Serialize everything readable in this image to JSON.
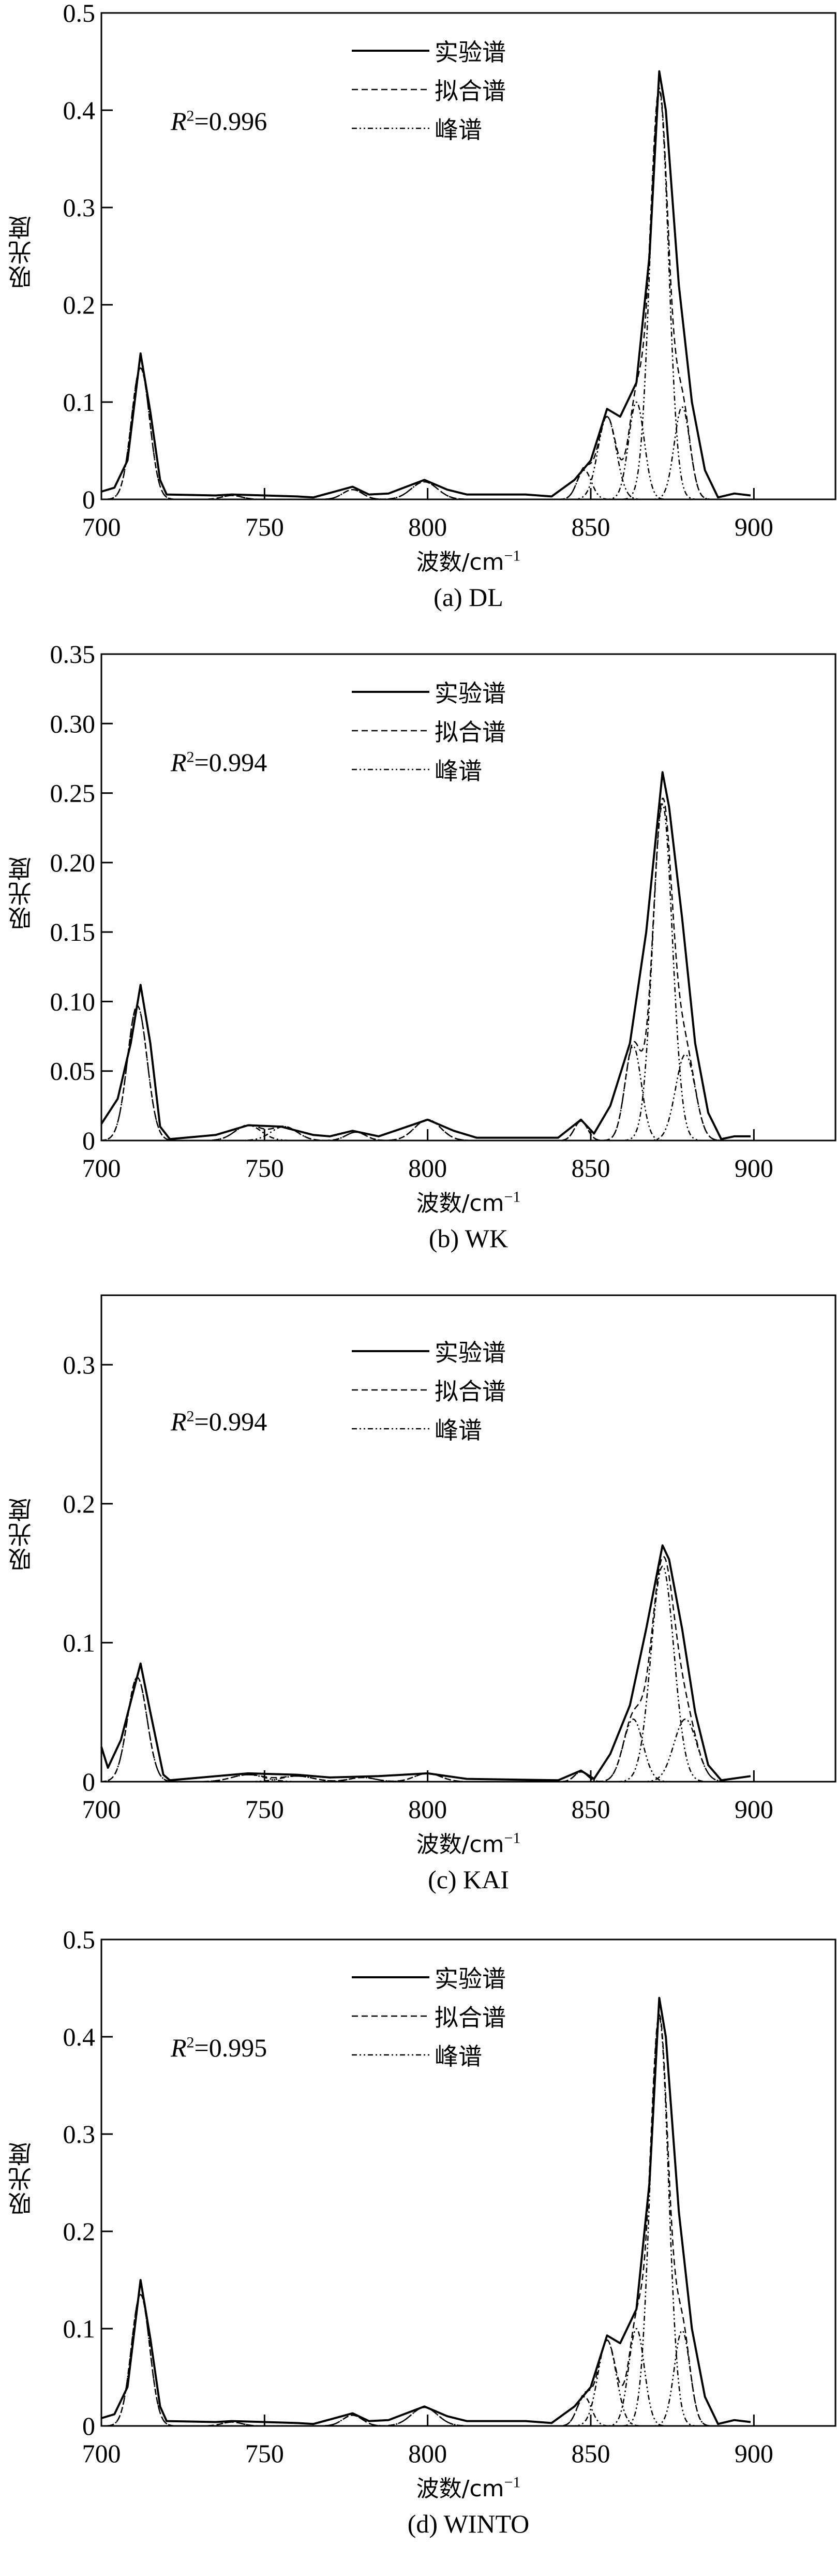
{
  "legend": {
    "experimental": "实验谱",
    "fitted": "拟合谱",
    "peaks": "峰谱"
  },
  "chart_data": [
    {
      "type": "line",
      "caption": "(a) DL",
      "r2_label": "R",
      "r2_sup": "2",
      "r2_value": "=0.996",
      "xlabel": "波数/cm",
      "xlabel_sup": "−1",
      "ylabel": "吸光度",
      "xlim": [
        700,
        925
      ],
      "ylim": [
        0,
        0.5
      ],
      "xticks": [
        700,
        750,
        800,
        850,
        900
      ],
      "yticks": [
        0,
        0.1,
        0.2,
        0.3,
        0.4,
        0.5
      ],
      "ytick_labels": [
        "0",
        "0.1",
        "0.2",
        "0.3",
        "0.4",
        "0.5"
      ],
      "experimental": [
        [
          700,
          0.008
        ],
        [
          704,
          0.012
        ],
        [
          708,
          0.04
        ],
        [
          712,
          0.15
        ],
        [
          715,
          0.09
        ],
        [
          718,
          0.02
        ],
        [
          720,
          0.005
        ],
        [
          735,
          0.004
        ],
        [
          740,
          0.005
        ],
        [
          760,
          0.003
        ],
        [
          765,
          0.002
        ],
        [
          777,
          0.013
        ],
        [
          782,
          0.005
        ],
        [
          788,
          0.006
        ],
        [
          799,
          0.02
        ],
        [
          806,
          0.01
        ],
        [
          812,
          0.005
        ],
        [
          830,
          0.005
        ],
        [
          838,
          0.003
        ],
        [
          845,
          0.02
        ],
        [
          850,
          0.04
        ],
        [
          855,
          0.093
        ],
        [
          859,
          0.085
        ],
        [
          864,
          0.12
        ],
        [
          868,
          0.25
        ],
        [
          871,
          0.44
        ],
        [
          873,
          0.4
        ],
        [
          877,
          0.22
        ],
        [
          881,
          0.1
        ],
        [
          885,
          0.03
        ],
        [
          889,
          0.002
        ],
        [
          894,
          0.006
        ],
        [
          899,
          0.004
        ]
      ],
      "peaks": [
        {
          "center": 712,
          "height": 0.135,
          "sigma": 2.8
        },
        {
          "center": 740,
          "height": 0.004,
          "sigma": 3
        },
        {
          "center": 777,
          "height": 0.01,
          "sigma": 3
        },
        {
          "center": 799,
          "height": 0.018,
          "sigma": 4
        },
        {
          "center": 848,
          "height": 0.03,
          "sigma": 2.2
        },
        {
          "center": 855,
          "height": 0.085,
          "sigma": 2.8
        },
        {
          "center": 864,
          "height": 0.1,
          "sigma": 2.4
        },
        {
          "center": 871,
          "height": 0.42,
          "sigma": 2.8
        },
        {
          "center": 878,
          "height": 0.095,
          "sigma": 2.4
        }
      ]
    },
    {
      "type": "line",
      "caption": "(b) WK",
      "r2_label": "R",
      "r2_sup": "2",
      "r2_value": "=0.994",
      "xlabel": "波数/cm",
      "xlabel_sup": "−1",
      "ylabel": "吸光度",
      "xlim": [
        700,
        925
      ],
      "ylim": [
        0,
        0.35
      ],
      "xticks": [
        700,
        750,
        800,
        850,
        900
      ],
      "yticks": [
        0,
        0.05,
        0.1,
        0.15,
        0.2,
        0.25,
        0.3,
        0.35
      ],
      "ytick_labels": [
        "0",
        "0.05",
        "0.10",
        "0.15",
        "0.20",
        "0.25",
        "0.30",
        "0.35"
      ],
      "experimental": [
        [
          700,
          0.012
        ],
        [
          705,
          0.03
        ],
        [
          709,
          0.07
        ],
        [
          712,
          0.112
        ],
        [
          715,
          0.07
        ],
        [
          718,
          0.01
        ],
        [
          721,
          0.001
        ],
        [
          735,
          0.004
        ],
        [
          745,
          0.011
        ],
        [
          755,
          0.01
        ],
        [
          765,
          0.004
        ],
        [
          770,
          0.003
        ],
        [
          777,
          0.007
        ],
        [
          785,
          0.003
        ],
        [
          800,
          0.015
        ],
        [
          808,
          0.007
        ],
        [
          815,
          0.002
        ],
        [
          840,
          0.002
        ],
        [
          847,
          0.015
        ],
        [
          851,
          0.005
        ],
        [
          856,
          0.025
        ],
        [
          862,
          0.07
        ],
        [
          867,
          0.15
        ],
        [
          872,
          0.265
        ],
        [
          874,
          0.24
        ],
        [
          878,
          0.16
        ],
        [
          882,
          0.07
        ],
        [
          886,
          0.02
        ],
        [
          890,
          0.001
        ],
        [
          894,
          0.003
        ],
        [
          899,
          0.003
        ]
      ],
      "peaks": [
        {
          "center": 711,
          "height": 0.097,
          "sigma": 3
        },
        {
          "center": 745,
          "height": 0.011,
          "sigma": 4
        },
        {
          "center": 756,
          "height": 0.01,
          "sigma": 4
        },
        {
          "center": 778,
          "height": 0.006,
          "sigma": 3
        },
        {
          "center": 800,
          "height": 0.015,
          "sigma": 4
        },
        {
          "center": 847,
          "height": 0.014,
          "sigma": 2
        },
        {
          "center": 863,
          "height": 0.068,
          "sigma": 2.5
        },
        {
          "center": 872,
          "height": 0.242,
          "sigma": 3
        },
        {
          "center": 879,
          "height": 0.062,
          "sigma": 3
        }
      ]
    },
    {
      "type": "line",
      "caption": "(c) KAI",
      "r2_label": "R",
      "r2_sup": "2",
      "r2_value": "=0.994",
      "xlabel": "波数/cm",
      "xlabel_sup": "−1",
      "ylabel": "吸光度",
      "xlim": [
        700,
        925
      ],
      "ylim": [
        0,
        0.35
      ],
      "xticks": [
        700,
        750,
        800,
        850,
        900
      ],
      "yticks": [
        0,
        0.1,
        0.2,
        0.3
      ],
      "ytick_labels": [
        "0",
        "0.1",
        "0.2",
        "0.3"
      ],
      "experimental": [
        [
          700,
          0.025
        ],
        [
          702,
          0.01
        ],
        [
          706,
          0.03
        ],
        [
          712,
          0.085
        ],
        [
          715,
          0.05
        ],
        [
          719,
          0.005
        ],
        [
          721,
          0.001
        ],
        [
          745,
          0.006
        ],
        [
          760,
          0.005
        ],
        [
          770,
          0.003
        ],
        [
          785,
          0.004
        ],
        [
          800,
          0.006
        ],
        [
          812,
          0.002
        ],
        [
          840,
          0.001
        ],
        [
          847,
          0.008
        ],
        [
          851,
          0.002
        ],
        [
          856,
          0.02
        ],
        [
          862,
          0.055
        ],
        [
          867,
          0.11
        ],
        [
          872,
          0.17
        ],
        [
          874,
          0.16
        ],
        [
          878,
          0.11
        ],
        [
          882,
          0.05
        ],
        [
          886,
          0.012
        ],
        [
          890,
          0.001
        ],
        [
          899,
          0.004
        ]
      ],
      "peaks": [
        {
          "center": 711,
          "height": 0.075,
          "sigma": 3
        },
        {
          "center": 745,
          "height": 0.005,
          "sigma": 5
        },
        {
          "center": 760,
          "height": 0.004,
          "sigma": 5
        },
        {
          "center": 780,
          "height": 0.003,
          "sigma": 4
        },
        {
          "center": 800,
          "height": 0.006,
          "sigma": 4
        },
        {
          "center": 847,
          "height": 0.007,
          "sigma": 2
        },
        {
          "center": 863,
          "height": 0.045,
          "sigma": 3
        },
        {
          "center": 872,
          "height": 0.155,
          "sigma": 3.5
        },
        {
          "center": 879,
          "height": 0.045,
          "sigma": 3.5
        }
      ]
    },
    {
      "type": "line",
      "caption": "(d) WINTO",
      "r2_label": "R",
      "r2_sup": "2",
      "r2_value": "=0.995",
      "xlabel": "波数/cm",
      "xlabel_sup": "−1",
      "ylabel": "吸光度",
      "xlim": [
        700,
        925
      ],
      "ylim": [
        0,
        0.5
      ],
      "xticks": [
        700,
        750,
        800,
        850,
        900
      ],
      "yticks": [
        0,
        0.1,
        0.2,
        0.3,
        0.4,
        0.5
      ],
      "ytick_labels": [
        "0",
        "0.1",
        "0.2",
        "0.3",
        "0.4",
        "0.5"
      ],
      "experimental": [
        [
          700,
          0.008
        ],
        [
          704,
          0.012
        ],
        [
          708,
          0.04
        ],
        [
          712,
          0.15
        ],
        [
          715,
          0.09
        ],
        [
          718,
          0.02
        ],
        [
          720,
          0.005
        ],
        [
          735,
          0.004
        ],
        [
          740,
          0.005
        ],
        [
          760,
          0.003
        ],
        [
          765,
          0.002
        ],
        [
          777,
          0.013
        ],
        [
          782,
          0.005
        ],
        [
          788,
          0.006
        ],
        [
          799,
          0.02
        ],
        [
          806,
          0.01
        ],
        [
          812,
          0.005
        ],
        [
          830,
          0.005
        ],
        [
          838,
          0.003
        ],
        [
          845,
          0.02
        ],
        [
          850,
          0.04
        ],
        [
          855,
          0.093
        ],
        [
          859,
          0.085
        ],
        [
          864,
          0.12
        ],
        [
          868,
          0.25
        ],
        [
          871,
          0.44
        ],
        [
          873,
          0.4
        ],
        [
          877,
          0.22
        ],
        [
          881,
          0.1
        ],
        [
          885,
          0.03
        ],
        [
          889,
          0.002
        ],
        [
          894,
          0.006
        ],
        [
          899,
          0.004
        ]
      ],
      "peaks": [
        {
          "center": 712,
          "height": 0.135,
          "sigma": 2.8
        },
        {
          "center": 740,
          "height": 0.004,
          "sigma": 3
        },
        {
          "center": 777,
          "height": 0.011,
          "sigma": 3
        },
        {
          "center": 799,
          "height": 0.019,
          "sigma": 4
        },
        {
          "center": 848,
          "height": 0.03,
          "sigma": 2.2
        },
        {
          "center": 855,
          "height": 0.088,
          "sigma": 2.8
        },
        {
          "center": 864,
          "height": 0.1,
          "sigma": 2.4
        },
        {
          "center": 871,
          "height": 0.42,
          "sigma": 2.8
        },
        {
          "center": 878,
          "height": 0.098,
          "sigma": 2.4
        }
      ]
    }
  ]
}
